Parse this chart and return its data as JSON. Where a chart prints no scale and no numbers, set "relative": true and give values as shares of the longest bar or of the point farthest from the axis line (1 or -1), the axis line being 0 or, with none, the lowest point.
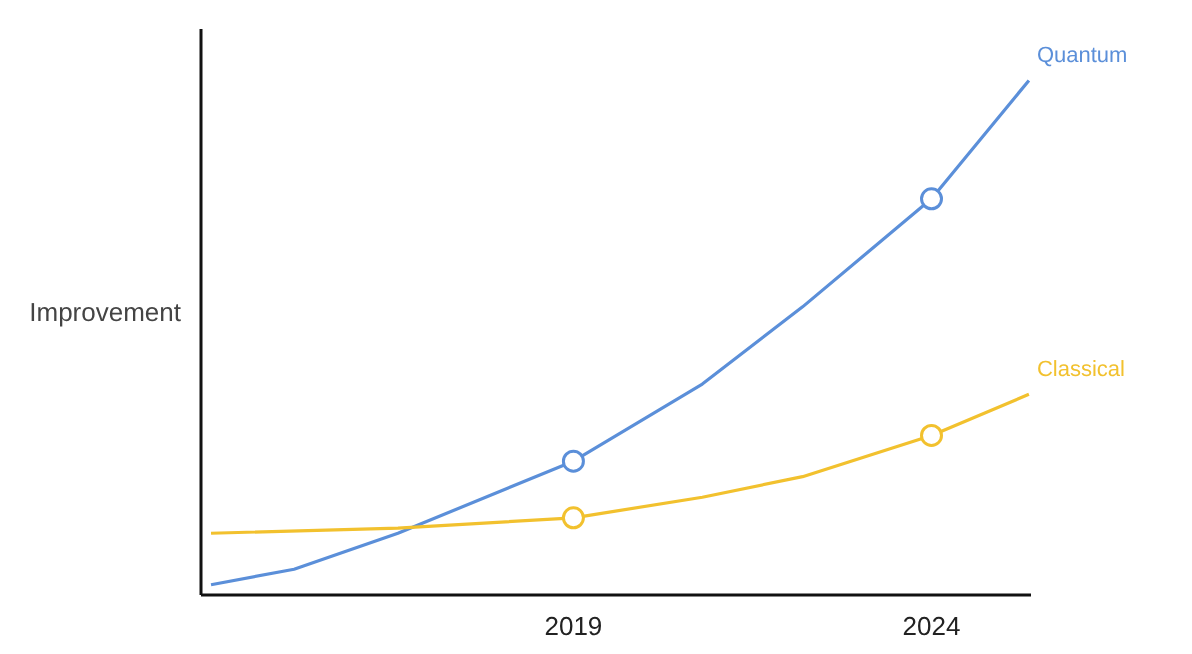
{
  "chart_data": {
    "type": "line",
    "relative": true,
    "ylabel": "Improvement",
    "xlim": [
      2013.8,
      2025.4
    ],
    "xticks": [
      2019,
      2024
    ],
    "grid": false,
    "legend": false,
    "tick_labels": "x",
    "line_style": "solid",
    "series": [
      {
        "name": "Quantum",
        "color": "#5b8fd9",
        "x": [
          2013.94,
          2015.1,
          2016.55,
          2019,
          2020.8,
          2022.2,
          2024,
          2025.36
        ],
        "values": [
          0.02,
          0.05,
          0.12,
          0.26,
          0.41,
          0.56,
          0.77,
          1.0
        ]
      },
      {
        "name": "Classical",
        "color": "#f2c12e",
        "x": [
          2013.94,
          2016.55,
          2019,
          2020.8,
          2022.2,
          2024,
          2025.36
        ],
        "values": [
          0.12,
          0.13,
          0.15,
          0.19,
          0.23,
          0.31,
          0.39
        ]
      },
      {
        "type": "scatter",
        "marker": "circle",
        "color": "#5b8fd9",
        "x": [
          2019,
          2024
        ],
        "values": [
          0.26,
          0.77
        ]
      },
      {
        "type": "scatter",
        "marker": "circle",
        "color": "#f2c12e",
        "x": [
          2019,
          2024
        ],
        "values": [
          0.15,
          0.31
        ]
      }
    ]
  }
}
